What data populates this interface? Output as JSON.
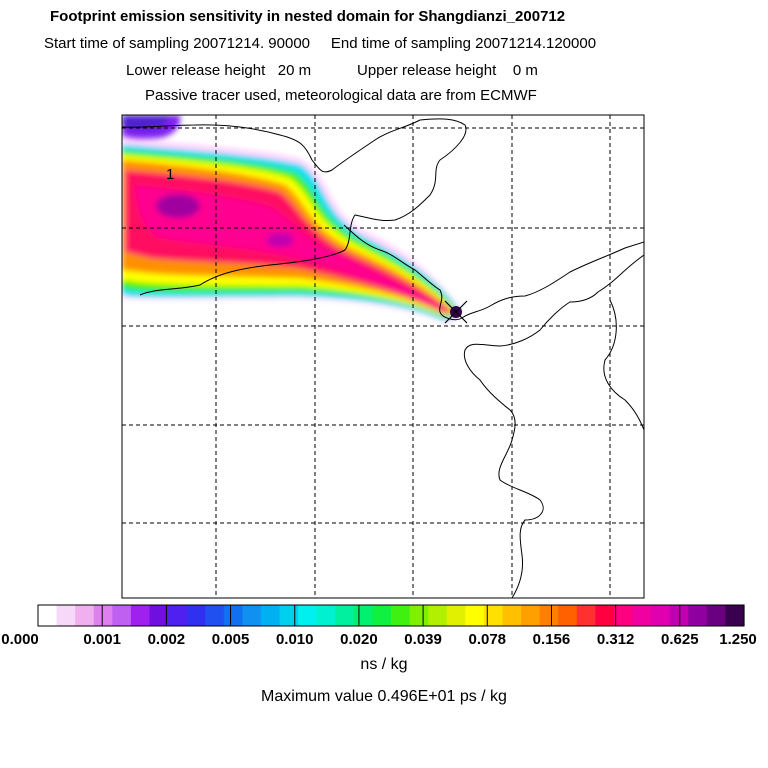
{
  "header": {
    "title": "Footprint emission sensitivity in nested domain for Shangdianzi_200712",
    "start_label": "Start time of sampling 20071214. 90000",
    "end_label": "End time of sampling 20071214.120000",
    "lower_label": "Lower release height",
    "lower_value": "20 m",
    "upper_label": "Upper release height",
    "upper_value": "0 m",
    "tracer_note": "Passive tracer used, meteorological data are from ECMWF"
  },
  "map": {
    "contour_label": "1",
    "receptor": "Shangdianzi"
  },
  "legend": {
    "ticks": [
      "0.000",
      "0.001",
      "0.002",
      "0.005",
      "0.010",
      "0.020",
      "0.039",
      "0.078",
      "0.156",
      "0.312",
      "0.625",
      "1.250"
    ],
    "colors": [
      "#ffffff",
      "#f8d8f8",
      "#f0b0f0",
      "#e080f0",
      "#c060f0",
      "#a020f0",
      "#7010e0",
      "#5020f0",
      "#3030f0",
      "#2050f0",
      "#1070f0",
      "#1090f0",
      "#00b0f0",
      "#00d0f0",
      "#00f0f0",
      "#00f0d0",
      "#00f0a0",
      "#00f070",
      "#10f040",
      "#40f010",
      "#80f000",
      "#b0f000",
      "#e0f000",
      "#ffff00",
      "#ffe000",
      "#ffc000",
      "#ffa000",
      "#ff8000",
      "#ff6000",
      "#ff3030",
      "#ff0040",
      "#ff0080",
      "#f000a0",
      "#e000b0",
      "#c000b0",
      "#9000a0",
      "#6a0080",
      "#3a0050"
    ],
    "units": "ns / kg"
  },
  "footer": {
    "max_label": "Maximum value  0.496E+01 ps / kg"
  }
}
